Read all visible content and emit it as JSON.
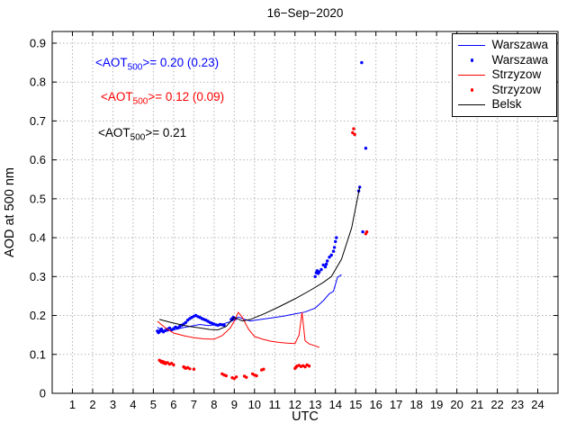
{
  "annotations": [
    {
      "prefix": "<AOT",
      "sub": "500",
      "suffix": ">= 0.20 (0.23)",
      "color": "#0000ff"
    },
    {
      "prefix": "<AOT",
      "sub": "500",
      "suffix": ">= 0.12 (0.09)",
      "color": "#ff0000"
    },
    {
      "prefix": "<AOT",
      "sub": "500",
      "suffix": ">= 0.21",
      "color": "#000000"
    }
  ],
  "legend": {
    "entries": [
      {
        "label": "Warszawa",
        "type": "line",
        "color": "#0000ff"
      },
      {
        "label": "Warszawa",
        "type": "scatter",
        "color": "#0000ff"
      },
      {
        "label": "Strzyzow",
        "type": "line",
        "color": "#ff0000"
      },
      {
        "label": "Strzyzow",
        "type": "scatter",
        "color": "#ff0000"
      },
      {
        "label": "Belsk",
        "type": "line",
        "color": "#000000"
      }
    ]
  },
  "chart_data": {
    "type": "line",
    "title": "16−Sep−2020",
    "xlabel": "UTC",
    "ylabel": "AOD at 500 nm",
    "xlim": [
      0,
      25
    ],
    "ylim": [
      0,
      0.93
    ],
    "grid": true,
    "legend_position": "top-right",
    "x_ticks": [
      1,
      2,
      3,
      4,
      5,
      6,
      7,
      8,
      9,
      10,
      11,
      12,
      13,
      14,
      15,
      16,
      17,
      18,
      19,
      20,
      21,
      22,
      23,
      24
    ],
    "x_tick_labels": [
      "1",
      "2",
      "3",
      "4",
      "5",
      "6",
      "7",
      "8",
      "9",
      "10",
      "11",
      "12",
      "13",
      "14",
      "15",
      "16",
      "17",
      "18",
      "19",
      "20",
      "21",
      "22",
      "23",
      "24"
    ],
    "y_ticks": [
      0,
      0.1,
      0.2,
      0.3,
      0.4,
      0.5,
      0.6,
      0.7,
      0.8,
      0.9
    ],
    "y_tick_labels": [
      "0",
      "0.1",
      "0.2",
      "0.3",
      "0.4",
      "0.5",
      "0.6",
      "0.7",
      "0.8",
      "0.9"
    ],
    "series": [
      {
        "name": "Warszawa",
        "type": "line",
        "color": "#0000ff",
        "points": [
          [
            5.2,
            0.17
          ],
          [
            5.5,
            0.158
          ],
          [
            5.8,
            0.161
          ],
          [
            6.1,
            0.164
          ],
          [
            6.5,
            0.169
          ],
          [
            6.9,
            0.173
          ],
          [
            7.3,
            0.177
          ],
          [
            7.7,
            0.174
          ],
          [
            8.1,
            0.176
          ],
          [
            8.5,
            0.179
          ],
          [
            8.9,
            0.186
          ],
          [
            9.2,
            0.196
          ],
          [
            9.5,
            0.19
          ],
          [
            9.8,
            0.186
          ],
          [
            10.2,
            0.189
          ],
          [
            10.6,
            0.192
          ],
          [
            11.0,
            0.195
          ],
          [
            11.5,
            0.199
          ],
          [
            12.0,
            0.204
          ],
          [
            12.5,
            0.209
          ],
          [
            13.0,
            0.219
          ],
          [
            13.4,
            0.238
          ],
          [
            13.7,
            0.256
          ],
          [
            13.9,
            0.262
          ],
          [
            14.1,
            0.298
          ],
          [
            14.3,
            0.305
          ]
        ]
      },
      {
        "name": "Warszawa",
        "type": "scatter",
        "color": "#0000ff",
        "points": [
          [
            5.2,
            0.16
          ],
          [
            5.25,
            0.156
          ],
          [
            5.3,
            0.158
          ],
          [
            5.35,
            0.162
          ],
          [
            5.4,
            0.165
          ],
          [
            5.45,
            0.16
          ],
          [
            5.5,
            0.158
          ],
          [
            5.6,
            0.162
          ],
          [
            5.7,
            0.165
          ],
          [
            5.8,
            0.168
          ],
          [
            5.9,
            0.163
          ],
          [
            6.0,
            0.166
          ],
          [
            6.1,
            0.17
          ],
          [
            6.2,
            0.168
          ],
          [
            6.3,
            0.172
          ],
          [
            6.4,
            0.175
          ],
          [
            6.5,
            0.178
          ],
          [
            6.6,
            0.182
          ],
          [
            6.7,
            0.188
          ],
          [
            6.8,
            0.192
          ],
          [
            6.9,
            0.195
          ],
          [
            7.0,
            0.198
          ],
          [
            7.1,
            0.2
          ],
          [
            7.2,
            0.197
          ],
          [
            7.3,
            0.195
          ],
          [
            7.4,
            0.192
          ],
          [
            7.5,
            0.19
          ],
          [
            7.6,
            0.188
          ],
          [
            7.7,
            0.185
          ],
          [
            7.8,
            0.182
          ],
          [
            7.9,
            0.18
          ],
          [
            8.0,
            0.178
          ],
          [
            8.1,
            0.176
          ],
          [
            8.2,
            0.175
          ],
          [
            8.3,
            0.177
          ],
          [
            8.4,
            0.176
          ],
          [
            8.5,
            0.175
          ],
          [
            8.85,
            0.19
          ],
          [
            8.9,
            0.192
          ],
          [
            8.95,
            0.195
          ],
          [
            9.0,
            0.193
          ],
          [
            9.05,
            0.191
          ],
          [
            13.0,
            0.3
          ],
          [
            13.05,
            0.31
          ],
          [
            13.1,
            0.315
          ],
          [
            13.15,
            0.308
          ],
          [
            13.2,
            0.312
          ],
          [
            13.3,
            0.318
          ],
          [
            13.4,
            0.33
          ],
          [
            13.5,
            0.325
          ],
          [
            13.55,
            0.332
          ],
          [
            13.6,
            0.34
          ],
          [
            13.7,
            0.35
          ],
          [
            13.8,
            0.355
          ],
          [
            13.9,
            0.365
          ],
          [
            13.95,
            0.375
          ],
          [
            14.0,
            0.39
          ],
          [
            14.05,
            0.4
          ],
          [
            15.15,
            0.52
          ],
          [
            15.2,
            0.53
          ],
          [
            15.3,
            0.85
          ],
          [
            15.35,
            0.415
          ],
          [
            15.5,
            0.63
          ]
        ]
      },
      {
        "name": "Strzyzow",
        "type": "line",
        "color": "#ff0000",
        "points": [
          [
            5.2,
            0.185
          ],
          [
            5.6,
            0.168
          ],
          [
            6.0,
            0.155
          ],
          [
            6.5,
            0.148
          ],
          [
            7.0,
            0.143
          ],
          [
            7.5,
            0.14
          ],
          [
            8.0,
            0.139
          ],
          [
            8.4,
            0.148
          ],
          [
            8.8,
            0.168
          ],
          [
            9.0,
            0.185
          ],
          [
            9.2,
            0.208
          ],
          [
            9.4,
            0.195
          ],
          [
            9.7,
            0.165
          ],
          [
            10.0,
            0.146
          ],
          [
            10.4,
            0.139
          ],
          [
            10.8,
            0.134
          ],
          [
            11.2,
            0.131
          ],
          [
            11.6,
            0.129
          ],
          [
            12.0,
            0.128
          ],
          [
            12.2,
            0.15
          ],
          [
            12.35,
            0.208
          ],
          [
            12.5,
            0.135
          ],
          [
            12.7,
            0.127
          ],
          [
            13.0,
            0.122
          ],
          [
            13.2,
            0.118
          ]
        ]
      },
      {
        "name": "Strzyzow",
        "type": "scatter",
        "color": "#ff0000",
        "points": [
          [
            5.3,
            0.085
          ],
          [
            5.35,
            0.083
          ],
          [
            5.4,
            0.08
          ],
          [
            5.45,
            0.082
          ],
          [
            5.5,
            0.078
          ],
          [
            5.55,
            0.08
          ],
          [
            5.6,
            0.076
          ],
          [
            5.7,
            0.079
          ],
          [
            5.8,
            0.075
          ],
          [
            5.9,
            0.077
          ],
          [
            6.0,
            0.073
          ],
          [
            6.5,
            0.068
          ],
          [
            6.55,
            0.066
          ],
          [
            6.6,
            0.064
          ],
          [
            6.7,
            0.066
          ],
          [
            6.8,
            0.063
          ],
          [
            7.0,
            0.062
          ],
          [
            8.4,
            0.05
          ],
          [
            8.5,
            0.047
          ],
          [
            8.6,
            0.045
          ],
          [
            8.9,
            0.04
          ],
          [
            9.0,
            0.038
          ],
          [
            9.1,
            0.042
          ],
          [
            9.5,
            0.044
          ],
          [
            9.6,
            0.041
          ],
          [
            9.9,
            0.05
          ],
          [
            10.0,
            0.047
          ],
          [
            10.1,
            0.045
          ],
          [
            10.35,
            0.06
          ],
          [
            10.45,
            0.062
          ],
          [
            12.0,
            0.064
          ],
          [
            12.05,
            0.067
          ],
          [
            12.1,
            0.07
          ],
          [
            12.2,
            0.072
          ],
          [
            12.3,
            0.069
          ],
          [
            12.4,
            0.071
          ],
          [
            12.5,
            0.068
          ],
          [
            12.6,
            0.073
          ],
          [
            12.7,
            0.07
          ],
          [
            14.85,
            0.67
          ],
          [
            14.9,
            0.68
          ],
          [
            14.95,
            0.665
          ],
          [
            15.5,
            0.41
          ],
          [
            15.55,
            0.415
          ]
        ]
      },
      {
        "name": "Belsk",
        "type": "line",
        "color": "#000000",
        "points": [
          [
            5.3,
            0.19
          ],
          [
            5.8,
            0.183
          ],
          [
            6.3,
            0.177
          ],
          [
            6.8,
            0.172
          ],
          [
            7.3,
            0.168
          ],
          [
            7.8,
            0.164
          ],
          [
            8.2,
            0.163
          ],
          [
            8.6,
            0.172
          ],
          [
            9.0,
            0.195
          ],
          [
            9.4,
            0.186
          ],
          [
            9.8,
            0.19
          ],
          [
            10.5,
            0.205
          ],
          [
            11.2,
            0.222
          ],
          [
            12.0,
            0.243
          ],
          [
            12.8,
            0.266
          ],
          [
            13.4,
            0.285
          ],
          [
            13.8,
            0.3
          ],
          [
            14.3,
            0.345
          ],
          [
            14.8,
            0.425
          ],
          [
            15.2,
            0.53
          ]
        ]
      }
    ]
  }
}
